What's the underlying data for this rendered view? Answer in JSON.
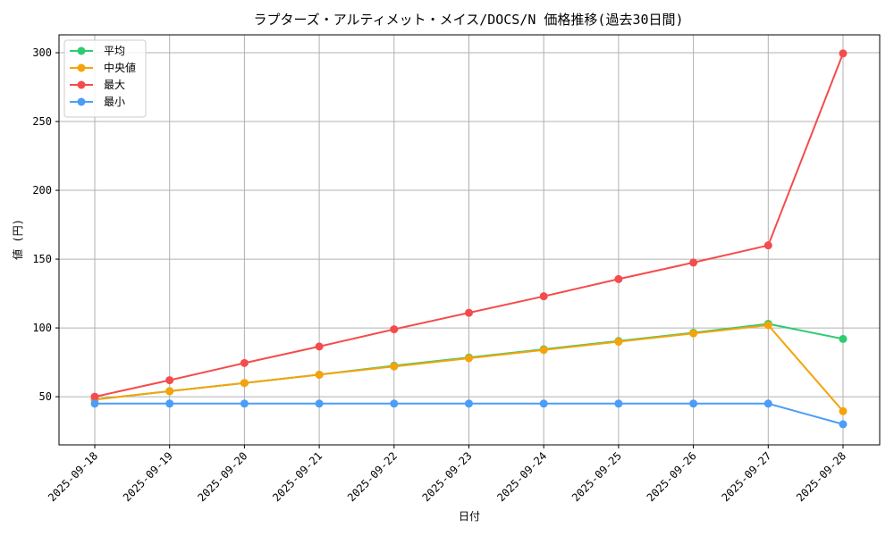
{
  "chart_data": {
    "type": "line",
    "title": "ラプターズ・アルティメット・メイス/DOCS/N 価格推移(過去30日間)",
    "xlabel": "日付",
    "ylabel": "値 (円)",
    "categories": [
      "2025-09-18",
      "2025-09-19",
      "2025-09-20",
      "2025-09-21",
      "2025-09-22",
      "2025-09-23",
      "2025-09-24",
      "2025-09-25",
      "2025-09-26",
      "2025-09-27",
      "2025-09-28"
    ],
    "ylim": [
      15,
      313
    ],
    "yticks": [
      50,
      100,
      150,
      200,
      250,
      300
    ],
    "grid": true,
    "legend_position": "upper-left",
    "series": [
      {
        "name": "平均",
        "color": "#2ecc71",
        "values": [
          48,
          54,
          60,
          66,
          72.5,
          78.5,
          84.5,
          90.5,
          96.5,
          103,
          92
        ]
      },
      {
        "name": "中央値",
        "color": "#f5a30a",
        "values": [
          48,
          54,
          60,
          66,
          72,
          78,
          84,
          90,
          96,
          102,
          39.5
        ]
      },
      {
        "name": "最大",
        "color": "#f44c4c",
        "values": [
          50,
          62,
          74.5,
          86.5,
          99,
          111,
          123,
          135.5,
          147.5,
          160,
          299.5
        ]
      },
      {
        "name": "最小",
        "color": "#4b9df7",
        "values": [
          45,
          45,
          45,
          45,
          45,
          45,
          45,
          45,
          45,
          45,
          30
        ]
      }
    ]
  }
}
